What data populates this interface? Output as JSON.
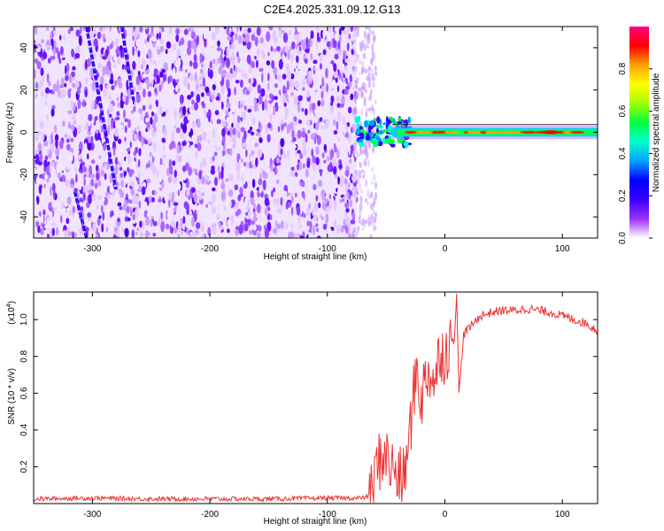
{
  "title": "C2E4.2025.331.09.12.G13",
  "chart_data": [
    {
      "type": "heatmap",
      "name": "spectrogram",
      "xlabel": "Height of straight line (km)",
      "ylabel": "Frequency (Hz)",
      "xlim": [
        -350,
        130
      ],
      "ylim": [
        -50,
        50
      ],
      "x_ticks": [
        -300,
        -200,
        -100,
        0,
        100
      ],
      "x_tick_labels": [
        "-300",
        "-200",
        "-100",
        "0",
        "100"
      ],
      "y_ticks": [
        -40,
        -20,
        0,
        20,
        40
      ],
      "y_tick_labels": [
        "-40",
        "-20",
        "0",
        "20",
        "40"
      ],
      "noise_region_x": [
        -350,
        -75
      ],
      "signal_band": {
        "x": [
          -75,
          130
        ],
        "freq_center": 0,
        "freq_halfwidth": 2
      },
      "diagonal_streaks": [
        {
          "x": [
            -305,
            -280
          ],
          "freq": [
            50,
            -27
          ]
        },
        {
          "x": [
            -315,
            -305
          ],
          "freq": [
            -28,
            -50
          ]
        },
        {
          "x": [
            -275,
            -265
          ],
          "freq": [
            50,
            15
          ]
        }
      ],
      "colorbar": {
        "label": "Normalized spectral amplitude",
        "range": [
          0,
          1
        ],
        "ticks": [
          0.0,
          0.2,
          0.4,
          0.6,
          0.8
        ],
        "tick_labels": [
          "0.0",
          "0.2",
          "0.4",
          "0.6",
          "0.8"
        ],
        "colors": [
          "#ffffff",
          "#9b30ff",
          "#3a00ff",
          "#0000ff",
          "#00a0ff",
          "#00ffd0",
          "#00ff40",
          "#a0ff00",
          "#ffff00",
          "#ffa000",
          "#ff0000",
          "#ff0080"
        ]
      }
    },
    {
      "type": "line",
      "name": "snr",
      "xlabel": "Height of straight line (km)",
      "ylabel": "SNR (10 * v/v)",
      "y_multiplier": "(x10",
      "y_multiplier_exp": "4",
      "y_multiplier_close": ")",
      "xlim": [
        -350,
        130
      ],
      "ylim": [
        0,
        1.15
      ],
      "x_ticks": [
        -300,
        -200,
        -100,
        0,
        100
      ],
      "x_tick_labels": [
        "-300",
        "-200",
        "-100",
        "0",
        "100"
      ],
      "y_ticks": [
        0.2,
        0.4,
        0.6,
        0.8,
        1.0
      ],
      "y_tick_labels": [
        "0.2",
        "0.4",
        "0.6",
        "0.8",
        "1.0"
      ],
      "color": "#ee3333",
      "series": [
        {
          "name": "SNR",
          "x": [
            -350,
            -300,
            -250,
            -200,
            -150,
            -100,
            -70,
            -62,
            -58,
            -52,
            -46,
            -40,
            -36,
            -32,
            -28,
            -24,
            -20,
            -16,
            -12,
            -8,
            -4,
            0,
            4,
            8,
            10,
            12,
            16,
            20,
            30,
            40,
            50,
            60,
            70,
            80,
            90,
            100,
            110,
            120,
            130
          ],
          "y": [
            0.025,
            0.03,
            0.025,
            0.025,
            0.025,
            0.03,
            0.03,
            0.05,
            0.2,
            0.28,
            0.2,
            0.15,
            0.12,
            0.25,
            0.5,
            0.75,
            0.55,
            0.7,
            0.72,
            0.65,
            0.85,
            0.8,
            0.88,
            0.9,
            1.15,
            0.6,
            0.92,
            0.95,
            1.02,
            1.04,
            1.05,
            1.05,
            1.06,
            1.05,
            1.04,
            1.02,
            1.0,
            0.98,
            0.94
          ]
        }
      ]
    }
  ]
}
